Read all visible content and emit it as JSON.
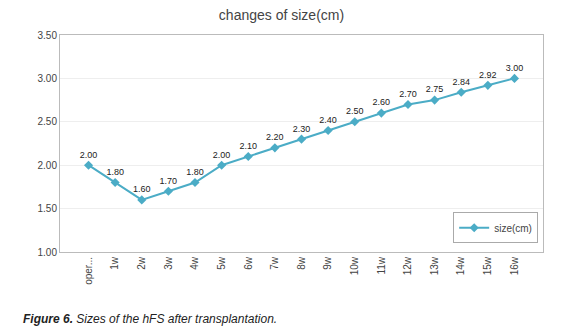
{
  "chart_data": {
    "type": "line",
    "title": "changes of size(cm)",
    "categories": [
      "oper...",
      "1w",
      "2w",
      "3w",
      "4w",
      "5w",
      "6w",
      "7w",
      "8w",
      "9w",
      "10w",
      "11w",
      "12w",
      "13w",
      "14w",
      "15w",
      "16w"
    ],
    "series": [
      {
        "name": "size(cm)",
        "color": "#4bacc6",
        "marker": "diamond",
        "line_style": "solid",
        "values": [
          2.0,
          1.8,
          1.6,
          1.7,
          1.8,
          2.0,
          2.1,
          2.2,
          2.3,
          2.4,
          2.5,
          2.6,
          2.7,
          2.75,
          2.84,
          2.92,
          3.0
        ],
        "value_labels": [
          "2.00",
          "1.80",
          "1.60",
          "1.70",
          "1.80",
          "2.00",
          "2.10",
          "2.20",
          "2.30",
          "2.40",
          "2.50",
          "2.60",
          "2.70",
          "2.75",
          "2.84",
          "2.92",
          "3.00"
        ]
      }
    ],
    "ylim": [
      1.0,
      3.5
    ],
    "yticks": [
      {
        "value": 1.0,
        "label": "1.00"
      },
      {
        "value": 1.5,
        "label": "1.50"
      },
      {
        "value": 2.0,
        "label": "2.00"
      },
      {
        "value": 2.5,
        "label": "2.50"
      },
      {
        "value": 3.0,
        "label": "3.00"
      },
      {
        "value": 3.5,
        "label": "3.50"
      }
    ],
    "grid": true,
    "data_labels": true,
    "legend": "lower right",
    "annotations": [
      "Figure 6.",
      "Sizes of the hFS after transplantation."
    ]
  }
}
